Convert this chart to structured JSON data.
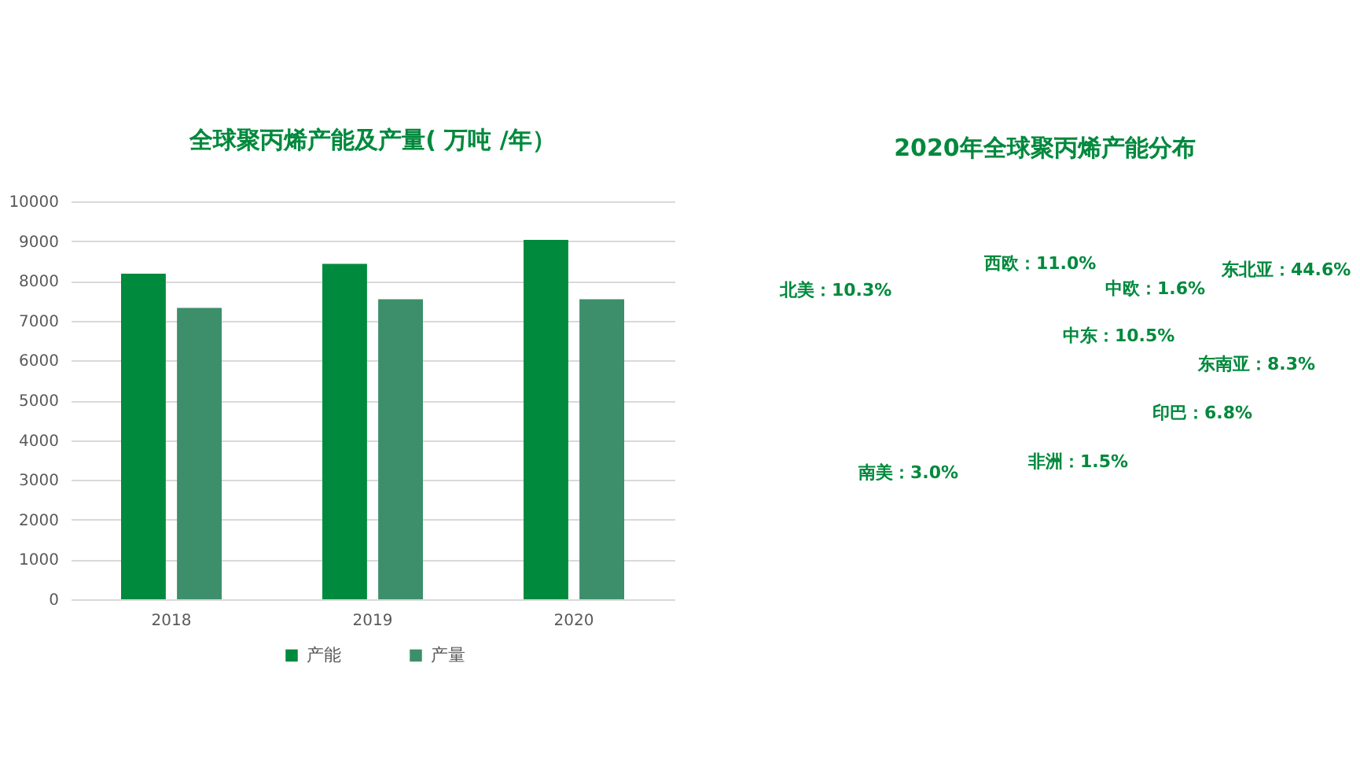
{
  "chart_data": [
    {
      "type": "bar",
      "title": "全球聚丙烯产能及产量( 万吨 /年）",
      "categories": [
        "2018",
        "2019",
        "2020"
      ],
      "series": [
        {
          "name": "产能",
          "color": "#008a3e",
          "values": [
            8180,
            8430,
            9030
          ]
        },
        {
          "name": "产量",
          "color": "#3c8f6a",
          "values": [
            7320,
            7540,
            7540
          ]
        }
      ],
      "ylim": [
        0,
        10000
      ],
      "yticks": [
        0,
        1000,
        2000,
        3000,
        4000,
        5000,
        6000,
        7000,
        8000,
        9000,
        10000
      ],
      "grid": "y",
      "legend": "bottom"
    },
    {
      "type": "other",
      "title": "2020年全球聚丙烯产能分布",
      "color": "#00893d",
      "categories": [
        "北美",
        "西欧",
        "中欧",
        "东北亚",
        "中东",
        "东南亚",
        "印巴",
        "非洲",
        "南美"
      ],
      "values": [
        10.3,
        11.0,
        1.6,
        44.6,
        10.5,
        8.3,
        6.8,
        1.5,
        3.0
      ],
      "value_labels": [
        "：10.3%",
        "：11.0%",
        "：1.6%",
        "：44.6%",
        "：10.5%",
        "：8.3%",
        "：6.8%",
        "：1.5%",
        "：3.0%"
      ]
    }
  ]
}
